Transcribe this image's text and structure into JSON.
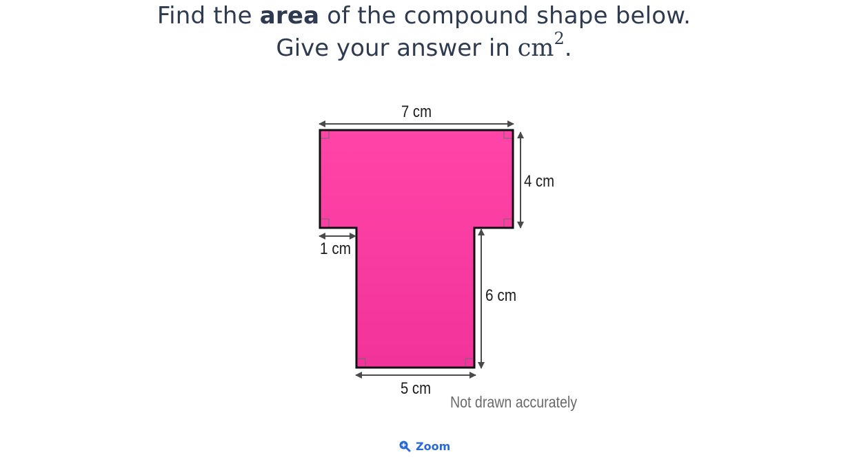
{
  "question": {
    "line1_prefix": "Find the ",
    "line1_bold": "area",
    "line1_suffix": " of the compound shape below.",
    "line2_prefix": "Give your answer in ",
    "line2_unit": "cm",
    "line2_exponent": "2",
    "line2_suffix": "."
  },
  "diagram": {
    "shape_color": "#f2339a",
    "shape_color_top": "#ff45a8",
    "outline_color": "#111111",
    "arrow_color": "#4a4a4a",
    "labels": {
      "top_width": "7 cm",
      "right_height": "4 cm",
      "left_overhang": "1 cm",
      "stem_height": "6 cm",
      "bottom_width": "5 cm",
      "note": "Not drawn accurately"
    }
  },
  "zoom": {
    "label": "Zoom",
    "icon": "zoom-in-icon",
    "color": "#2a6ad8"
  }
}
